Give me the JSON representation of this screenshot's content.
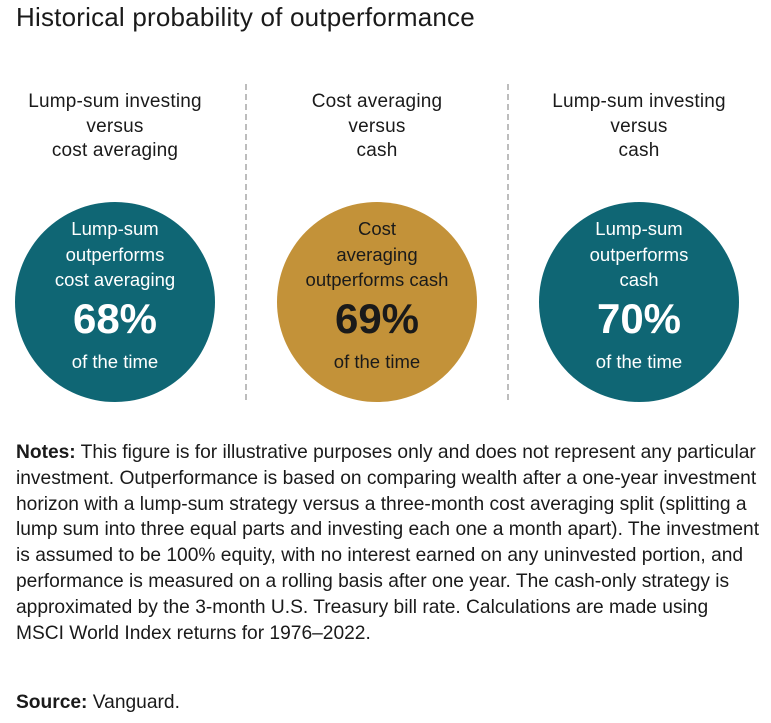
{
  "title": "Historical probability of outperformance",
  "colors": {
    "teal": "#0f6674",
    "gold": "#c39239"
  },
  "panels": [
    {
      "heading": [
        "Lump-sum investing",
        "versus",
        "cost averaging"
      ],
      "circle_text": [
        "Lump-sum",
        "outperforms",
        "cost averaging"
      ],
      "percent_label": "68%",
      "tail": "of the time",
      "color": "#0f6674"
    },
    {
      "heading": [
        "Cost averaging",
        "versus",
        "cash"
      ],
      "circle_text": [
        "Cost",
        "averaging",
        "outperforms cash"
      ],
      "percent_label": "69%",
      "tail": "of the time",
      "color": "#c39239"
    },
    {
      "heading": [
        "Lump-sum investing",
        "versus",
        "cash"
      ],
      "circle_text": [
        "Lump-sum",
        "outperforms",
        "cash"
      ],
      "percent_label": "70%",
      "tail": "of the time",
      "color": "#0f6674"
    }
  ],
  "chart_data": {
    "type": "table",
    "title": "Historical probability of outperformance",
    "categories": [
      "Lump-sum investing versus cost averaging",
      "Cost averaging versus cash",
      "Lump-sum investing versus cash"
    ],
    "values": [
      68,
      69,
      70
    ],
    "unit": "%"
  },
  "notes": {
    "label": "Notes:",
    "text": " This figure is for illustrative purposes only and does not represent any particular investment. Outperformance is based on comparing wealth after a one-year investment horizon with a lump-sum strategy versus a three-month cost averaging split (splitting a lump sum into three equal parts and investing each one a month apart). The investment is assumed to be 100% equity, with no interest earned on any uninvested portion, and performance is measured on a rolling basis after one year. The cash-only strategy is approximated by the 3-month U.S. Treasury bill rate. Calculations are made using MSCI World Index returns for 1976–2022."
  },
  "source": {
    "label": "Source:",
    "text": " Vanguard."
  }
}
